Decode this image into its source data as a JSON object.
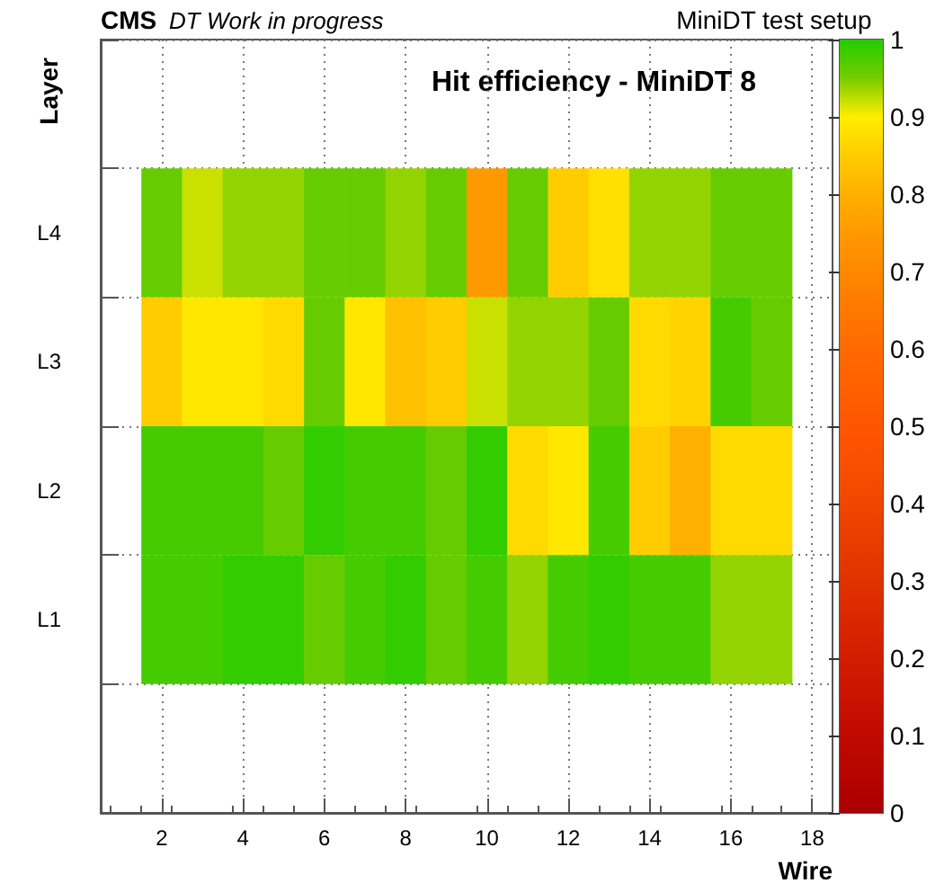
{
  "chart_data": {
    "type": "heatmap",
    "title": "Hit efficiency - MiniDT 8",
    "xlabel": "Wire",
    "ylabel": "Layer",
    "annotations": [
      "CMS",
      "DT Work in progress",
      "MiniDT test setup"
    ],
    "x": [
      2,
      3,
      4,
      5,
      6,
      7,
      8,
      9,
      10,
      11,
      12,
      13,
      14,
      15,
      16,
      17
    ],
    "xlim": [
      0.5,
      18.5
    ],
    "xticks": [
      2,
      4,
      6,
      8,
      10,
      12,
      14,
      16,
      18
    ],
    "y_categories": [
      "L4",
      "L3",
      "L2",
      "L1"
    ],
    "cells": [
      [
        0.96,
        0.92,
        0.94,
        0.94,
        0.96,
        0.96,
        0.94,
        0.96,
        0.75,
        0.96,
        0.85,
        0.88,
        0.94,
        0.94,
        0.96,
        0.96
      ],
      [
        0.85,
        0.89,
        0.89,
        0.87,
        0.96,
        0.89,
        0.83,
        0.85,
        0.92,
        0.94,
        0.94,
        0.96,
        0.87,
        0.86,
        0.98,
        0.96
      ],
      [
        0.98,
        0.98,
        0.98,
        0.96,
        0.99,
        0.98,
        0.98,
        0.96,
        0.99,
        0.87,
        0.89,
        0.98,
        0.85,
        0.8,
        0.87,
        0.87
      ],
      [
        0.98,
        0.98,
        0.99,
        0.99,
        0.96,
        0.98,
        0.99,
        0.96,
        0.98,
        0.94,
        0.98,
        0.99,
        0.98,
        0.98,
        0.94,
        0.94
      ]
    ],
    "clim": [
      0,
      1
    ],
    "cticks": [
      0,
      0.1,
      0.2,
      0.3,
      0.4,
      0.5,
      0.6,
      0.7,
      0.8,
      0.9,
      1
    ],
    "grid": true
  }
}
